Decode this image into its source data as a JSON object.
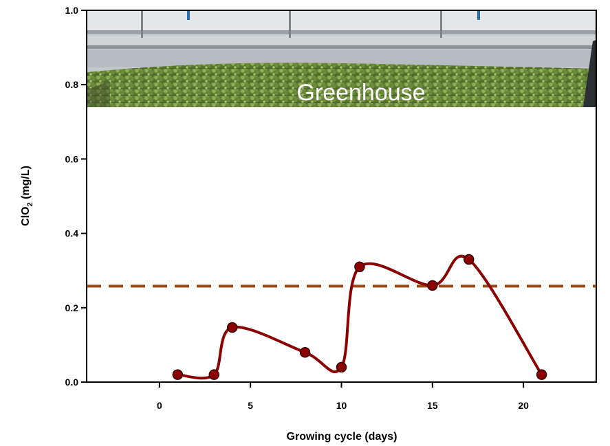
{
  "chart_data": {
    "type": "line",
    "title": "",
    "xlabel": "Growing cycle (days)",
    "ylabel_main": "ClO",
    "ylabel_sub": "2",
    "ylabel_unit": " (mg/L)",
    "xlim": [
      -4,
      24
    ],
    "ylim": [
      0,
      1.0
    ],
    "x_ticks": [
      0,
      5,
      10,
      15,
      20
    ],
    "x_tick_labels": [
      "0",
      "5",
      "10",
      "15",
      "20"
    ],
    "y_ticks": [
      0,
      0.2,
      0.4,
      0.6,
      0.8,
      1.0
    ],
    "y_tick_labels": [
      "0.0",
      "0.2",
      "0.4",
      "0.6",
      "0.8",
      "1.0"
    ],
    "grid": false,
    "series": [
      {
        "x": [
          1,
          3,
          4,
          8,
          10,
          11,
          15,
          17,
          21
        ],
        "y": [
          0.02,
          0.02,
          0.147,
          0.08,
          0.04,
          0.31,
          0.26,
          0.33,
          0.02
        ],
        "color": "#8b0000",
        "marker_edge": "#3a0000",
        "smooth": true
      }
    ],
    "reference_line": {
      "y": 0.258,
      "color": "#9a4a12",
      "style": "dashed"
    },
    "inset_photo": {
      "caption": "Greenhouse",
      "subject": "greenhouse-seedling-tray"
    }
  }
}
